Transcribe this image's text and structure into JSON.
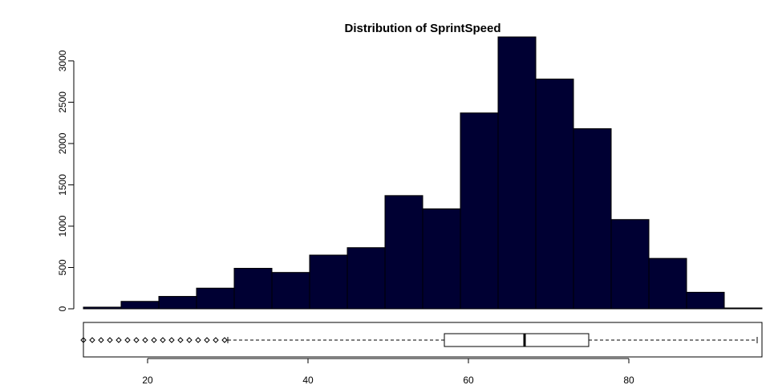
{
  "chart_data": {
    "type": "bar",
    "title": "Distribution of SprintSpeed",
    "histogram": {
      "bin_edges": [
        12,
        16.7,
        21.4,
        26.1,
        30.8,
        35.5,
        40.2,
        44.9,
        49.6,
        54.3,
        59.0,
        63.7,
        68.4,
        73.1,
        77.8,
        82.5,
        87.2,
        91.9,
        96.6
      ],
      "counts": [
        20,
        90,
        150,
        250,
        490,
        440,
        650,
        740,
        1370,
        1210,
        2370,
        3290,
        2780,
        2180,
        1080,
        610,
        200,
        10
      ],
      "ylim": [
        0,
        3300
      ],
      "yticks": [
        0,
        500,
        1000,
        1500,
        2000,
        2500,
        3000
      ],
      "ytick_labels": [
        "0",
        "500",
        "1000",
        "1500",
        "2000",
        "2500",
        "3000"
      ]
    },
    "boxplot": {
      "min": 30,
      "q1": 57,
      "median": 67,
      "q3": 75,
      "max": 96,
      "outliers": [
        12,
        13.1,
        14.2,
        15.3,
        16.4,
        17.5,
        18.6,
        19.7,
        20.8,
        21.9,
        23,
        24.1,
        25.2,
        26.3,
        27.4,
        28.5,
        29.6
      ]
    },
    "xlim": [
      12,
      96.6
    ],
    "xticks": [
      20,
      40,
      60,
      80
    ],
    "xtick_labels": [
      "20",
      "40",
      "60",
      "80"
    ],
    "grid": false,
    "colors": {
      "bar_fill": "#000033",
      "line": "#000000",
      "background": "#ffffff"
    }
  }
}
